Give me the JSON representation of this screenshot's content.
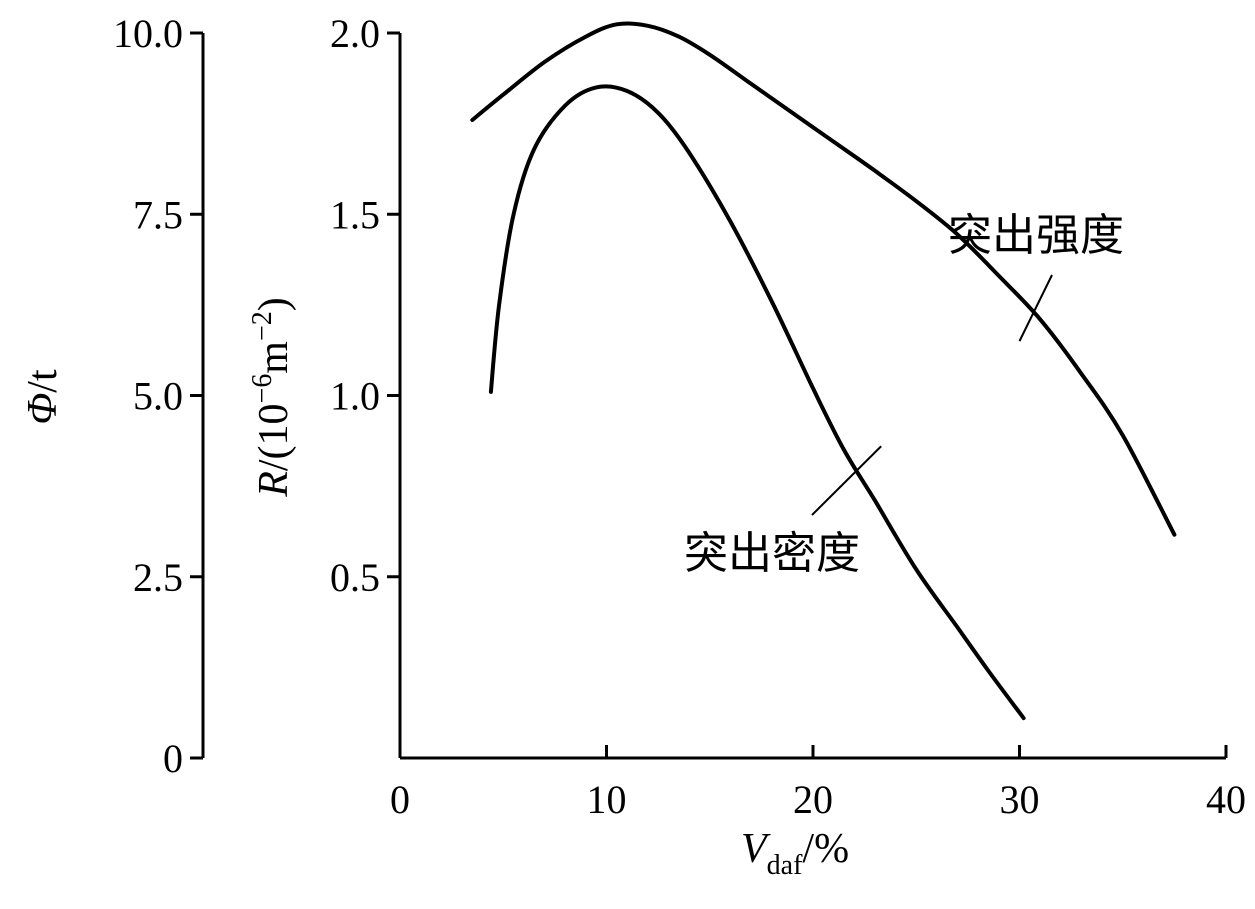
{
  "chart_data": {
    "type": "line",
    "axes": {
      "x": {
        "label_main": "V",
        "label_sub": "daf",
        "label_unit": "/%",
        "range": [
          0,
          40
        ],
        "ticks": [
          0,
          10,
          20,
          30,
          40
        ],
        "tick_labels": [
          "0",
          "10",
          "20",
          "30",
          "40"
        ]
      },
      "y_left_outer": {
        "label_main": "Φ",
        "label_unit": "/t",
        "range": [
          0,
          10
        ],
        "ticks": [
          0,
          2.5,
          5.0,
          7.5,
          10.0
        ],
        "tick_labels": [
          "0",
          "2.5",
          "5.0",
          "7.5",
          "10.0"
        ]
      },
      "y_left_inner": {
        "label_main": "R",
        "label_unit_prefix": "/(10",
        "label_exp1": "−6",
        "label_unit_mid": "m",
        "label_exp2": "−2",
        "label_unit_suffix": ")",
        "range": [
          0,
          2.0
        ],
        "ticks": [
          0.5,
          1.0,
          1.5,
          2.0
        ],
        "tick_labels": [
          "0.5",
          "1.0",
          "1.5",
          "2.0"
        ]
      }
    },
    "series": [
      {
        "name": "突出强度",
        "axis": "y_left_outer",
        "points": [
          [
            3.5,
            8.8
          ],
          [
            5,
            9.15
          ],
          [
            7,
            9.6
          ],
          [
            9,
            9.95
          ],
          [
            10.5,
            10.12
          ],
          [
            12,
            10.1
          ],
          [
            13.5,
            9.95
          ],
          [
            15,
            9.7
          ],
          [
            17,
            9.3
          ],
          [
            19,
            8.9
          ],
          [
            21,
            8.5
          ],
          [
            23,
            8.1
          ],
          [
            25,
            7.68
          ],
          [
            27,
            7.22
          ],
          [
            29,
            6.65
          ],
          [
            31,
            6.05
          ],
          [
            33,
            5.3
          ],
          [
            35,
            4.45
          ],
          [
            37.5,
            3.08
          ]
        ],
        "annotation_anchor": [
          30,
          5.75
        ]
      },
      {
        "name": "突出密度",
        "axis": "y_left_inner",
        "points": [
          [
            4.4,
            1.01
          ],
          [
            4.8,
            1.25
          ],
          [
            5.5,
            1.5
          ],
          [
            6.5,
            1.68
          ],
          [
            8,
            1.8
          ],
          [
            9.5,
            1.85
          ],
          [
            11,
            1.84
          ],
          [
            12.5,
            1.78
          ],
          [
            14,
            1.67
          ],
          [
            16,
            1.48
          ],
          [
            18,
            1.26
          ],
          [
            20,
            1.02
          ],
          [
            21.5,
            0.85
          ],
          [
            23,
            0.71
          ],
          [
            25,
            0.52
          ],
          [
            27,
            0.36
          ],
          [
            28.5,
            0.24
          ],
          [
            30.2,
            0.11
          ]
        ],
        "annotation_anchor": [
          23.3,
          0.86
        ]
      }
    ],
    "annotations": [
      {
        "text": "突出强度",
        "series": "突出强度"
      },
      {
        "text": "突出密度",
        "series": "突出密度"
      }
    ]
  }
}
